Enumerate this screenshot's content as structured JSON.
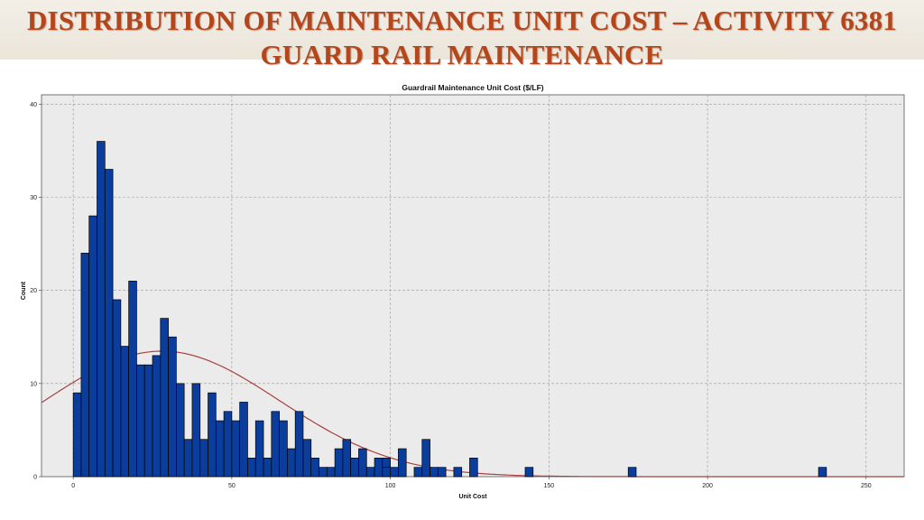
{
  "slide": {
    "title_line1": "DISTRIBUTION OF MAINTENANCE UNIT COST – ACTIVITY 6381",
    "title_line2": "GUARD RAIL MAINTENANCE"
  },
  "colors": {
    "title": "#b5461c",
    "bar_fill": "#0b3d9c",
    "bar_stroke": "#000000",
    "curve": "#a84040",
    "plot_bg": "#ebebeb",
    "grid": "#9a9a9a"
  },
  "chart_data": {
    "type": "bar",
    "subtype": "histogram",
    "title": "Guardrail Maintenance Unit Cost ($/LF)",
    "xlabel": "Unit Cost",
    "ylabel": "Count",
    "xlim": [
      -10,
      262
    ],
    "ylim": [
      0,
      41
    ],
    "xticks": [
      0,
      50,
      100,
      150,
      200,
      250
    ],
    "yticks": [
      0,
      10,
      20,
      30,
      40
    ],
    "grid": true,
    "bin_width": 2.5,
    "bins": [
      {
        "x": 0,
        "count": 9
      },
      {
        "x": 2.5,
        "count": 24
      },
      {
        "x": 5,
        "count": 28
      },
      {
        "x": 7.5,
        "count": 36
      },
      {
        "x": 10,
        "count": 33
      },
      {
        "x": 12.5,
        "count": 19
      },
      {
        "x": 15,
        "count": 14
      },
      {
        "x": 17.5,
        "count": 21
      },
      {
        "x": 20,
        "count": 12
      },
      {
        "x": 22.5,
        "count": 12
      },
      {
        "x": 25,
        "count": 13
      },
      {
        "x": 27.5,
        "count": 17
      },
      {
        "x": 30,
        "count": 15
      },
      {
        "x": 32.5,
        "count": 10
      },
      {
        "x": 35,
        "count": 4
      },
      {
        "x": 37.5,
        "count": 10
      },
      {
        "x": 40,
        "count": 4
      },
      {
        "x": 42.5,
        "count": 9
      },
      {
        "x": 45,
        "count": 6
      },
      {
        "x": 47.5,
        "count": 7
      },
      {
        "x": 50,
        "count": 6
      },
      {
        "x": 52.5,
        "count": 8
      },
      {
        "x": 55,
        "count": 2
      },
      {
        "x": 57.5,
        "count": 6
      },
      {
        "x": 60,
        "count": 2
      },
      {
        "x": 62.5,
        "count": 7
      },
      {
        "x": 65,
        "count": 6
      },
      {
        "x": 67.5,
        "count": 3
      },
      {
        "x": 70,
        "count": 7
      },
      {
        "x": 72.5,
        "count": 4
      },
      {
        "x": 75,
        "count": 2
      },
      {
        "x": 77.5,
        "count": 1
      },
      {
        "x": 80,
        "count": 1
      },
      {
        "x": 82.5,
        "count": 3
      },
      {
        "x": 85,
        "count": 4
      },
      {
        "x": 87.5,
        "count": 2
      },
      {
        "x": 90,
        "count": 3
      },
      {
        "x": 92.5,
        "count": 1
      },
      {
        "x": 95,
        "count": 2
      },
      {
        "x": 97.5,
        "count": 2
      },
      {
        "x": 100,
        "count": 1
      },
      {
        "x": 97.5,
        "count": 0
      },
      {
        "x": 97.5,
        "count": 1
      },
      {
        "x": 102.5,
        "count": 3
      },
      {
        "x": 107.5,
        "count": 1
      },
      {
        "x": 110,
        "count": 4
      },
      {
        "x": 112.5,
        "count": 1
      },
      {
        "x": 115,
        "count": 1
      },
      {
        "x": 120,
        "count": 1
      },
      {
        "x": 125,
        "count": 2
      },
      {
        "x": 142.5,
        "count": 1
      },
      {
        "x": 175,
        "count": 1
      },
      {
        "x": 235,
        "count": 1
      }
    ],
    "normal_curve": {
      "mean": 28,
      "sd": 37,
      "n": 500
    }
  }
}
